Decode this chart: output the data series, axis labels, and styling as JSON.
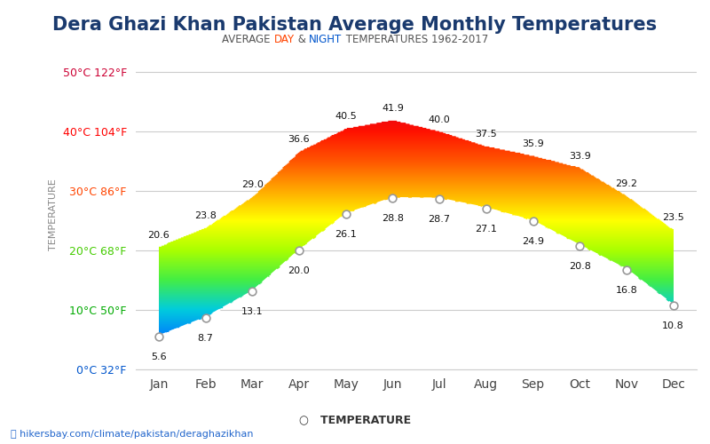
{
  "title": "Dera Ghazi Khan Pakistan Average Monthly Temperatures",
  "subtitle_parts": [
    {
      "text": "AVERAGE ",
      "color": "#555555"
    },
    {
      "text": "DAY",
      "color": "#ff4400"
    },
    {
      "text": " & ",
      "color": "#555555"
    },
    {
      "text": "NIGHT",
      "color": "#0055cc"
    },
    {
      "text": " TEMPERATURES 1962-2017",
      "color": "#555555"
    }
  ],
  "months": [
    "Jan",
    "Feb",
    "Mar",
    "Apr",
    "May",
    "Jun",
    "Jul",
    "Aug",
    "Sep",
    "Oct",
    "Nov",
    "Dec"
  ],
  "day_temps": [
    20.6,
    23.8,
    29.0,
    36.6,
    40.5,
    41.9,
    40.0,
    37.5,
    35.9,
    33.9,
    29.2,
    23.5
  ],
  "night_temps": [
    5.6,
    8.7,
    13.1,
    20.0,
    26.1,
    28.8,
    28.7,
    27.1,
    24.9,
    20.8,
    16.8,
    10.8
  ],
  "y_ticks_c": [
    0,
    10,
    20,
    30,
    40,
    50
  ],
  "y_labels": [
    "0°C 32°F",
    "10°C 50°F",
    "20°C 68°F",
    "30°C 86°F",
    "40°C 104°F",
    "50°C 122°F"
  ],
  "ylim": [
    0,
    52
  ],
  "xlim": [
    -0.5,
    11.5
  ],
  "title_color": "#1a3a6e",
  "title_fontsize": 15,
  "background_color": "#ffffff",
  "grid_color": "#cccccc",
  "ylabel": "TEMPERATURE",
  "watermark": "hikersbay.com/climate/pakistan/deraghazikhan",
  "gradient_stops": [
    {
      "t": 0,
      "color": "#0000cc"
    },
    {
      "t": 5,
      "color": "#0077ff"
    },
    {
      "t": 10,
      "color": "#00ccdd"
    },
    {
      "t": 15,
      "color": "#44ee44"
    },
    {
      "t": 20,
      "color": "#aaff00"
    },
    {
      "t": 25,
      "color": "#ffff00"
    },
    {
      "t": 30,
      "color": "#ffaa00"
    },
    {
      "t": 35,
      "color": "#ff5500"
    },
    {
      "t": 40,
      "color": "#ff1100"
    },
    {
      "t": 45,
      "color": "#dd0022"
    },
    {
      "t": 50,
      "color": "#cc0033"
    }
  ]
}
